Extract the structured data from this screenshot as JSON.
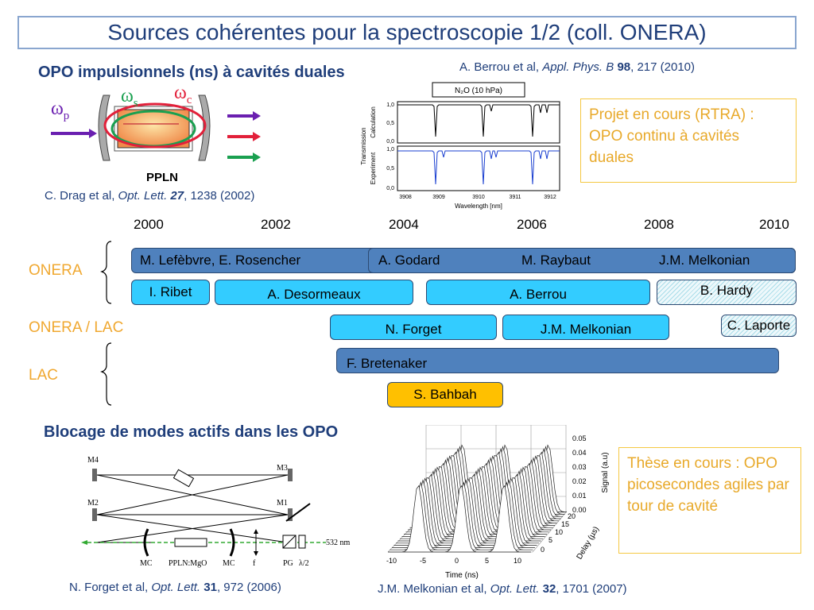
{
  "title": "Sources cohérentes pour la spectroscopie 1/2 (coll. ONERA)",
  "top_left": {
    "heading": "OPO impulsionnels (ns) à cavités duales",
    "omega_p": "ω",
    "omega_p_sub": "p",
    "omega_s": "ω",
    "omega_s_sub": "s",
    "omega_c": "ω",
    "omega_c_sub": "c",
    "crystal_label": "PPLN",
    "ref_authors": "C. Drag et al, ",
    "ref_journal": "Opt. Lett.",
    "ref_volume": "27",
    "ref_rest": ", 1238 (2002)"
  },
  "top_center": {
    "ref_authors": "A. Berrou et al, ",
    "ref_journal": "Appl. Phys. B",
    "ref_volume": "98",
    "ref_rest": ", 217 (2010)",
    "plot_legend": "N₂O (10 hPa)",
    "ylabel_top": "Calculation",
    "ylabel_bottom": "Experiment",
    "ylabel_main": "Transmission",
    "xlabel": "Wavelength [nm]",
    "y_ticks": [
      "1,0",
      "0,5",
      "0,0"
    ],
    "x_ticks": [
      "3908",
      "3909",
      "3910",
      "3911",
      "3912"
    ]
  },
  "note_top": "Projet en cours (RTRA) : OPO continu à cavités duales",
  "timeline": {
    "years": [
      "2000",
      "2002",
      "2004",
      "2006",
      "2008",
      "2010"
    ],
    "groups": [
      "ONERA",
      "ONERA / LAC",
      "LAC"
    ],
    "bars": {
      "lefebvre": "M. Lefèbvre, E. Rosencher",
      "godard": "A. Godard",
      "raybaut": "M. Raybaut",
      "melkonian1": "J.M. Melkonian",
      "ribet": "I. Ribet",
      "desormeaux": "A. Desormeaux",
      "berrou": "A. Berrou",
      "hardy": "B. Hardy",
      "forget": "N. Forget",
      "melkonian2": "J.M. Melkonian",
      "laporte": "C. Laporte",
      "bretenaker": "F. Bretenaker",
      "bahbah": "S. Bahbah"
    }
  },
  "bottom_left": {
    "heading": "Blocage de modes actifs dans les OPO",
    "labels": [
      "M4",
      "M3",
      "M2",
      "M1",
      "MC",
      "PPLN:MgO",
      "MC",
      "f",
      "PG",
      "λ/2",
      "532 nm"
    ],
    "ref_authors": "N. Forget et al, ",
    "ref_journal": "Opt. Lett.",
    "ref_volume": "31",
    "ref_rest": ", 972 (2006)"
  },
  "bottom_center": {
    "zlabel": "Signal (a.u)",
    "xlabel": "Time (ns)",
    "ylabel": "Delay (µs)",
    "z_ticks": [
      "0.05",
      "0.04",
      "0.03",
      "0.02",
      "0.01",
      "0.00"
    ],
    "x_ticks": [
      "-10",
      "-5",
      "0",
      "5",
      "10"
    ],
    "y_ticks": [
      "0",
      "5",
      "10",
      "15",
      "20"
    ],
    "ref_authors": "J.M. Melkonian et al, ",
    "ref_journal": "Opt. Lett.",
    "ref_volume": "32",
    "ref_rest": ", 1701 (2007)"
  },
  "note_bottom": "Thèse en cours : OPO picosecondes agiles par tour de cavité"
}
